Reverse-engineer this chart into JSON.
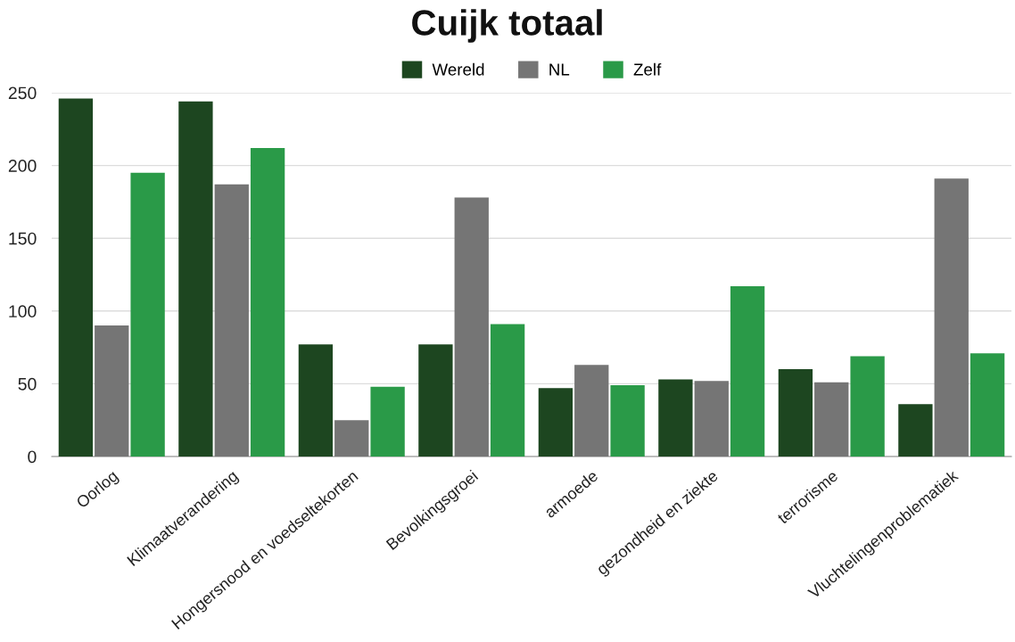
{
  "chart_data": {
    "type": "bar",
    "title": "Cuijk totaal",
    "categories": [
      "Oorlog",
      "Klimaatverandering",
      "Hongersnood en voedseltekorten",
      "Bevolkingsgroei",
      "armoede",
      "gezondheid en ziekte",
      "terrorisme",
      "Vluchtelingenproblematiek"
    ],
    "series": [
      {
        "name": "Wereld",
        "color": "#1d4620",
        "values": [
          246,
          244,
          77,
          77,
          47,
          53,
          60,
          36
        ]
      },
      {
        "name": "NL",
        "color": "#757575",
        "values": [
          90,
          187,
          25,
          178,
          63,
          52,
          51,
          191
        ]
      },
      {
        "name": "Zelf",
        "color": "#2a9a48",
        "values": [
          195,
          212,
          48,
          91,
          49,
          117,
          69,
          71
        ]
      }
    ],
    "ylim": [
      0,
      250
    ],
    "yticks": [
      0,
      50,
      100,
      150,
      200,
      250
    ],
    "grid": "y",
    "legend": "top"
  }
}
